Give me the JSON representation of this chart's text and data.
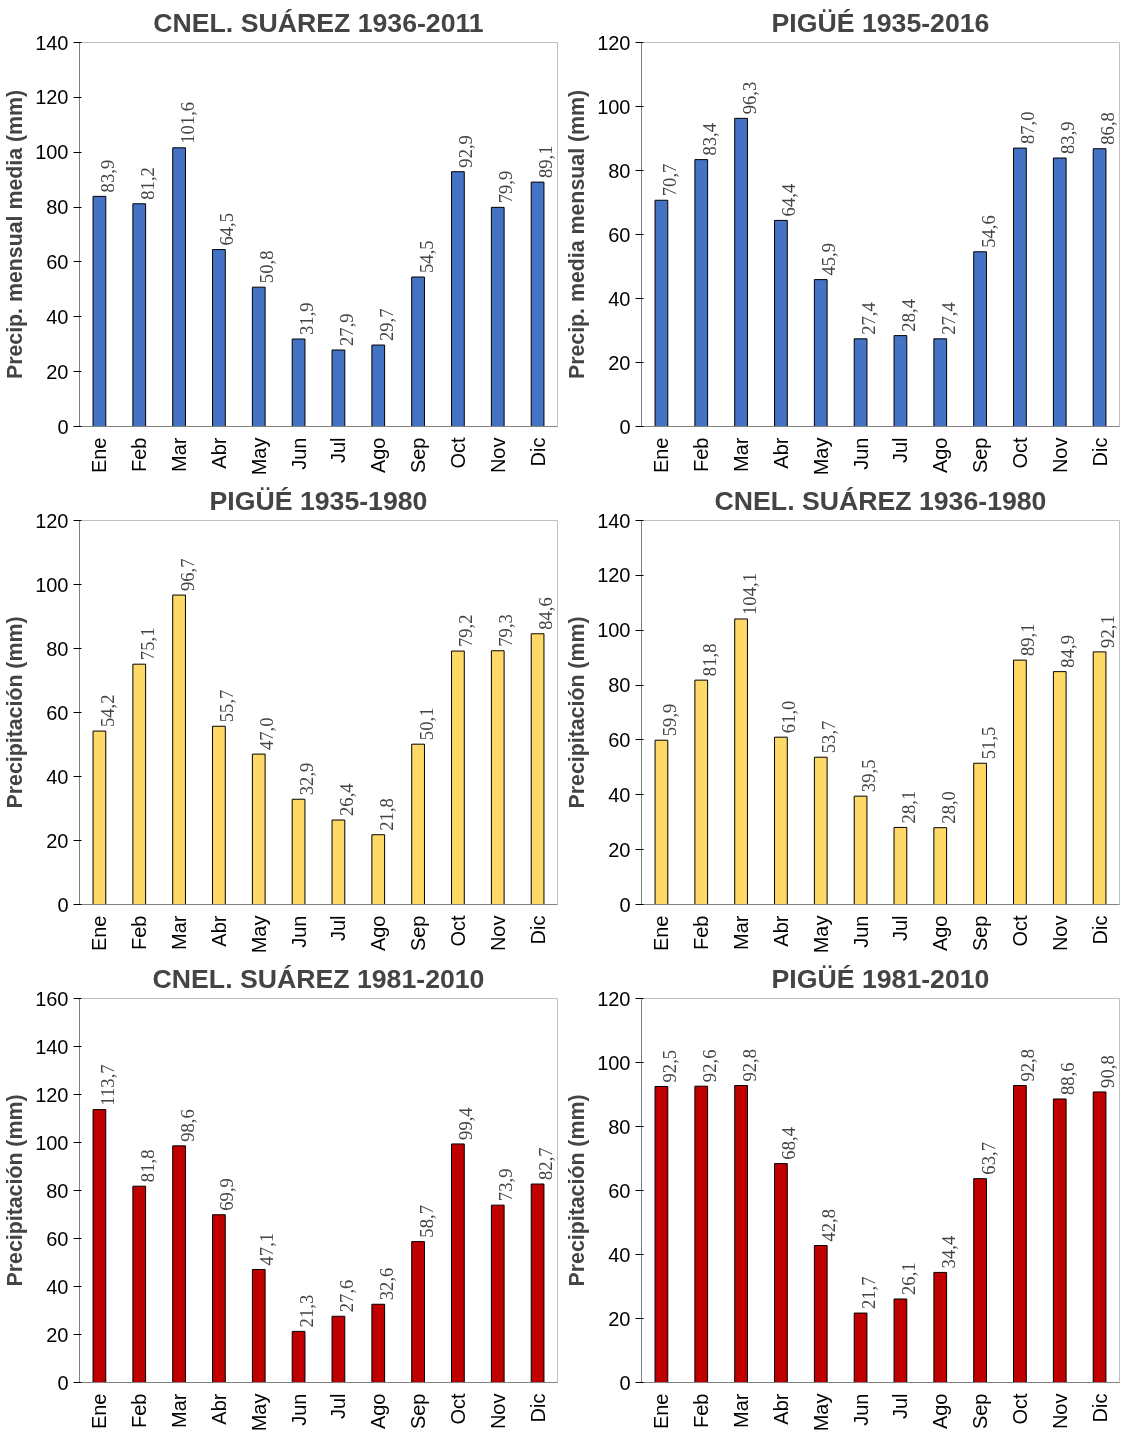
{
  "chart_data": [
    {
      "type": "bar",
      "title": "CNEL. SUÁREZ 1936-2011",
      "ylabel": "Precip. mensual media (mm)",
      "categories": [
        "Ene",
        "Feb",
        "Mar",
        "Abr",
        "May",
        "Jun",
        "Jul",
        "Ago",
        "Sep",
        "Oct",
        "Nov",
        "Dic"
      ],
      "values": [
        83.9,
        81.2,
        101.6,
        64.5,
        50.8,
        31.9,
        27.9,
        29.7,
        54.5,
        92.9,
        79.9,
        89.1
      ],
      "value_labels": [
        "83,9",
        "81,2",
        "101,6",
        "64,5",
        "50,8",
        "31,9",
        "27,9",
        "29,7",
        "54,5",
        "92,9",
        "79,9",
        "89,1"
      ],
      "color": "#4472c4",
      "ylim": [
        0,
        140
      ],
      "yticks": [
        0,
        20,
        40,
        60,
        80,
        100,
        120,
        140
      ],
      "grid": false
    },
    {
      "type": "bar",
      "title": "PIGÜÉ 1935-2016",
      "ylabel": "Precip. media mensual (mm)",
      "categories": [
        "Ene",
        "Feb",
        "Mar",
        "Abr",
        "May",
        "Jun",
        "Jul",
        "Ago",
        "Sep",
        "Oct",
        "Nov",
        "Dic"
      ],
      "values": [
        70.7,
        83.4,
        96.3,
        64.4,
        45.9,
        27.4,
        28.4,
        27.4,
        54.6,
        87.0,
        83.9,
        86.8
      ],
      "value_labels": [
        "70,7",
        "83,4",
        "96,3",
        "64,4",
        "45,9",
        "27,4",
        "28,4",
        "27,4",
        "54,6",
        "87,0",
        "83,9",
        "86,8"
      ],
      "color": "#4472c4",
      "ylim": [
        0,
        120
      ],
      "yticks": [
        0,
        20,
        40,
        60,
        80,
        100,
        120
      ],
      "grid": false
    },
    {
      "type": "bar",
      "title": "PIGÜÉ 1935-1980",
      "ylabel": "Precipitación (mm)",
      "categories": [
        "Ene",
        "Feb",
        "Mar",
        "Abr",
        "May",
        "Jun",
        "Jul",
        "Ago",
        "Sep",
        "Oct",
        "Nov",
        "Dic"
      ],
      "values": [
        54.2,
        75.1,
        96.7,
        55.7,
        47.0,
        32.9,
        26.4,
        21.8,
        50.1,
        79.2,
        79.3,
        84.6
      ],
      "value_labels": [
        "54,2",
        "75,1",
        "96,7",
        "55,7",
        "47,0",
        "32,9",
        "26,4",
        "21,8",
        "50,1",
        "79,2",
        "79,3",
        "84,6"
      ],
      "color": "#ffd966",
      "ylim": [
        0,
        120
      ],
      "yticks": [
        0,
        20,
        40,
        60,
        80,
        100,
        120
      ],
      "grid": false
    },
    {
      "type": "bar",
      "title": "CNEL. SUÁREZ 1936-1980",
      "ylabel": "Precipitación (mm)",
      "categories": [
        "Ene",
        "Feb",
        "Mar",
        "Abr",
        "May",
        "Jun",
        "Jul",
        "Ago",
        "Sep",
        "Oct",
        "Nov",
        "Dic"
      ],
      "values": [
        59.9,
        81.8,
        104.1,
        61.0,
        53.7,
        39.5,
        28.1,
        28.0,
        51.5,
        89.1,
        84.9,
        92.1
      ],
      "value_labels": [
        "59,9",
        "81,8",
        "104,1",
        "61,0",
        "53,7",
        "39,5",
        "28,1",
        "28,0",
        "51,5",
        "89,1",
        "84,9",
        "92,1"
      ],
      "color": "#ffd966",
      "ylim": [
        0,
        140
      ],
      "yticks": [
        0,
        20,
        40,
        60,
        80,
        100,
        120,
        140
      ],
      "grid": false
    },
    {
      "type": "bar",
      "title": "CNEL. SUÁREZ 1981-2010",
      "ylabel": "Precipitación (mm)",
      "categories": [
        "Ene",
        "Feb",
        "Mar",
        "Abr",
        "May",
        "Jun",
        "Jul",
        "Ago",
        "Sep",
        "Oct",
        "Nov",
        "Dic"
      ],
      "values": [
        113.7,
        81.8,
        98.6,
        69.9,
        47.1,
        21.3,
        27.6,
        32.6,
        58.7,
        99.4,
        73.9,
        82.7
      ],
      "value_labels": [
        "113,7",
        "81,8",
        "98,6",
        "69,9",
        "47,1",
        "21,3",
        "27,6",
        "32,6",
        "58,7",
        "99,4",
        "73,9",
        "82,7"
      ],
      "color": "#c00000",
      "ylim": [
        0,
        160
      ],
      "yticks": [
        0,
        20,
        40,
        60,
        80,
        100,
        120,
        140,
        160
      ],
      "grid": false
    },
    {
      "type": "bar",
      "title": "PIGÜÉ 1981-2010",
      "ylabel": "Precipitación (mm)",
      "categories": [
        "Ene",
        "Feb",
        "Mar",
        "Abr",
        "May",
        "Jun",
        "Jul",
        "Ago",
        "Sep",
        "Oct",
        "Nov",
        "Dic"
      ],
      "values": [
        92.5,
        92.6,
        92.8,
        68.4,
        42.8,
        21.7,
        26.1,
        34.4,
        63.7,
        92.8,
        88.6,
        90.8
      ],
      "value_labels": [
        "92,5",
        "92,6",
        "92,8",
        "68,4",
        "42,8",
        "21,7",
        "26,1",
        "34,4",
        "63,7",
        "92,8",
        "88,6",
        "90,8"
      ],
      "color": "#c00000",
      "ylim": [
        0,
        120
      ],
      "yticks": [
        0,
        20,
        40,
        60,
        80,
        100,
        120
      ],
      "grid": false
    }
  ]
}
